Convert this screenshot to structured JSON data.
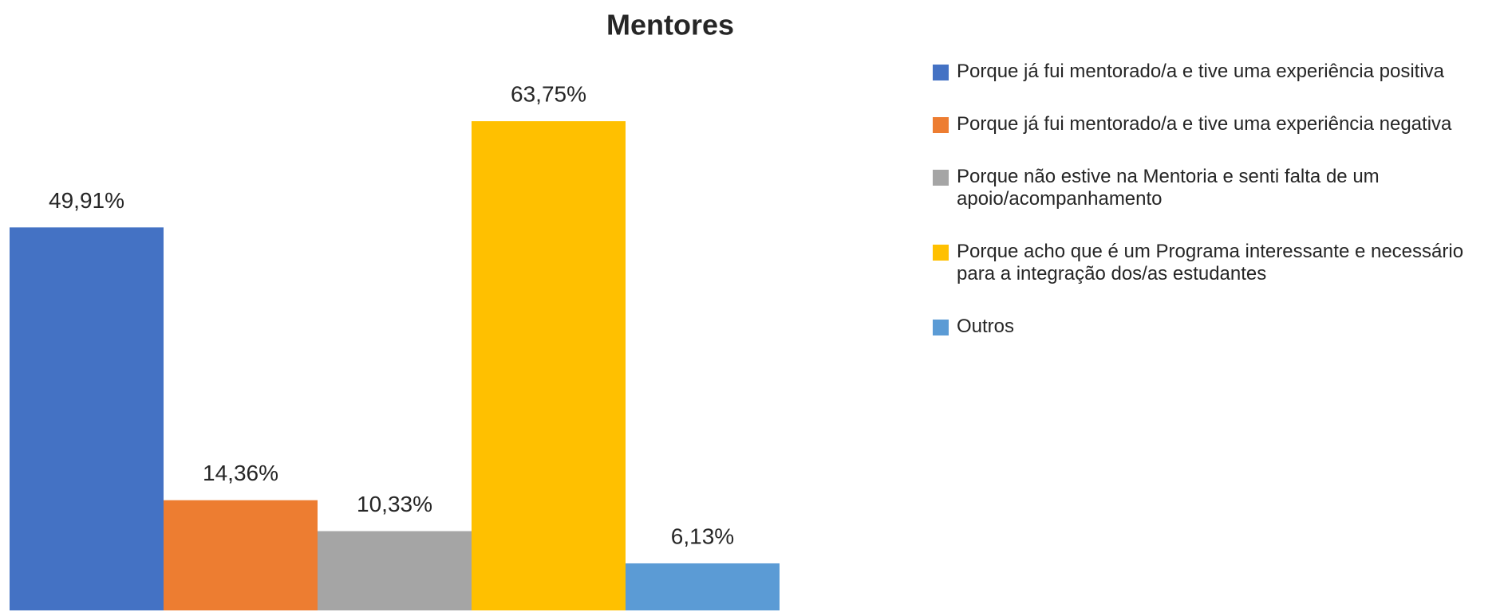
{
  "chart_data": {
    "type": "bar",
    "title": "Mentores",
    "series": [
      {
        "name": "Porque já fui mentorado/a e tive uma experiência positiva",
        "color": "#4472c4",
        "values": [
          49.91
        ],
        "value_labels": [
          "49,91%"
        ]
      },
      {
        "name": "Porque já fui mentorado/a e tive uma experiência negativa",
        "color": "#ed7d31",
        "values": [
          14.36
        ],
        "value_labels": [
          "14,36%"
        ]
      },
      {
        "name": "Porque não estive na Mentoria e senti falta de um apoio/acompanhamento",
        "color": "#a5a5a5",
        "values": [
          10.33
        ],
        "value_labels": [
          "10,33%"
        ]
      },
      {
        "name": "Porque acho que é um Programa interessante e necessário para a integração dos/as estudantes",
        "color": "#ffc000",
        "values": [
          63.75
        ],
        "value_labels": [
          "63,75%"
        ]
      },
      {
        "name": "Outros",
        "color": "#5b9bd5",
        "values": [
          6.13
        ],
        "value_labels": [
          "6,13%"
        ]
      }
    ],
    "legend": "right"
  }
}
